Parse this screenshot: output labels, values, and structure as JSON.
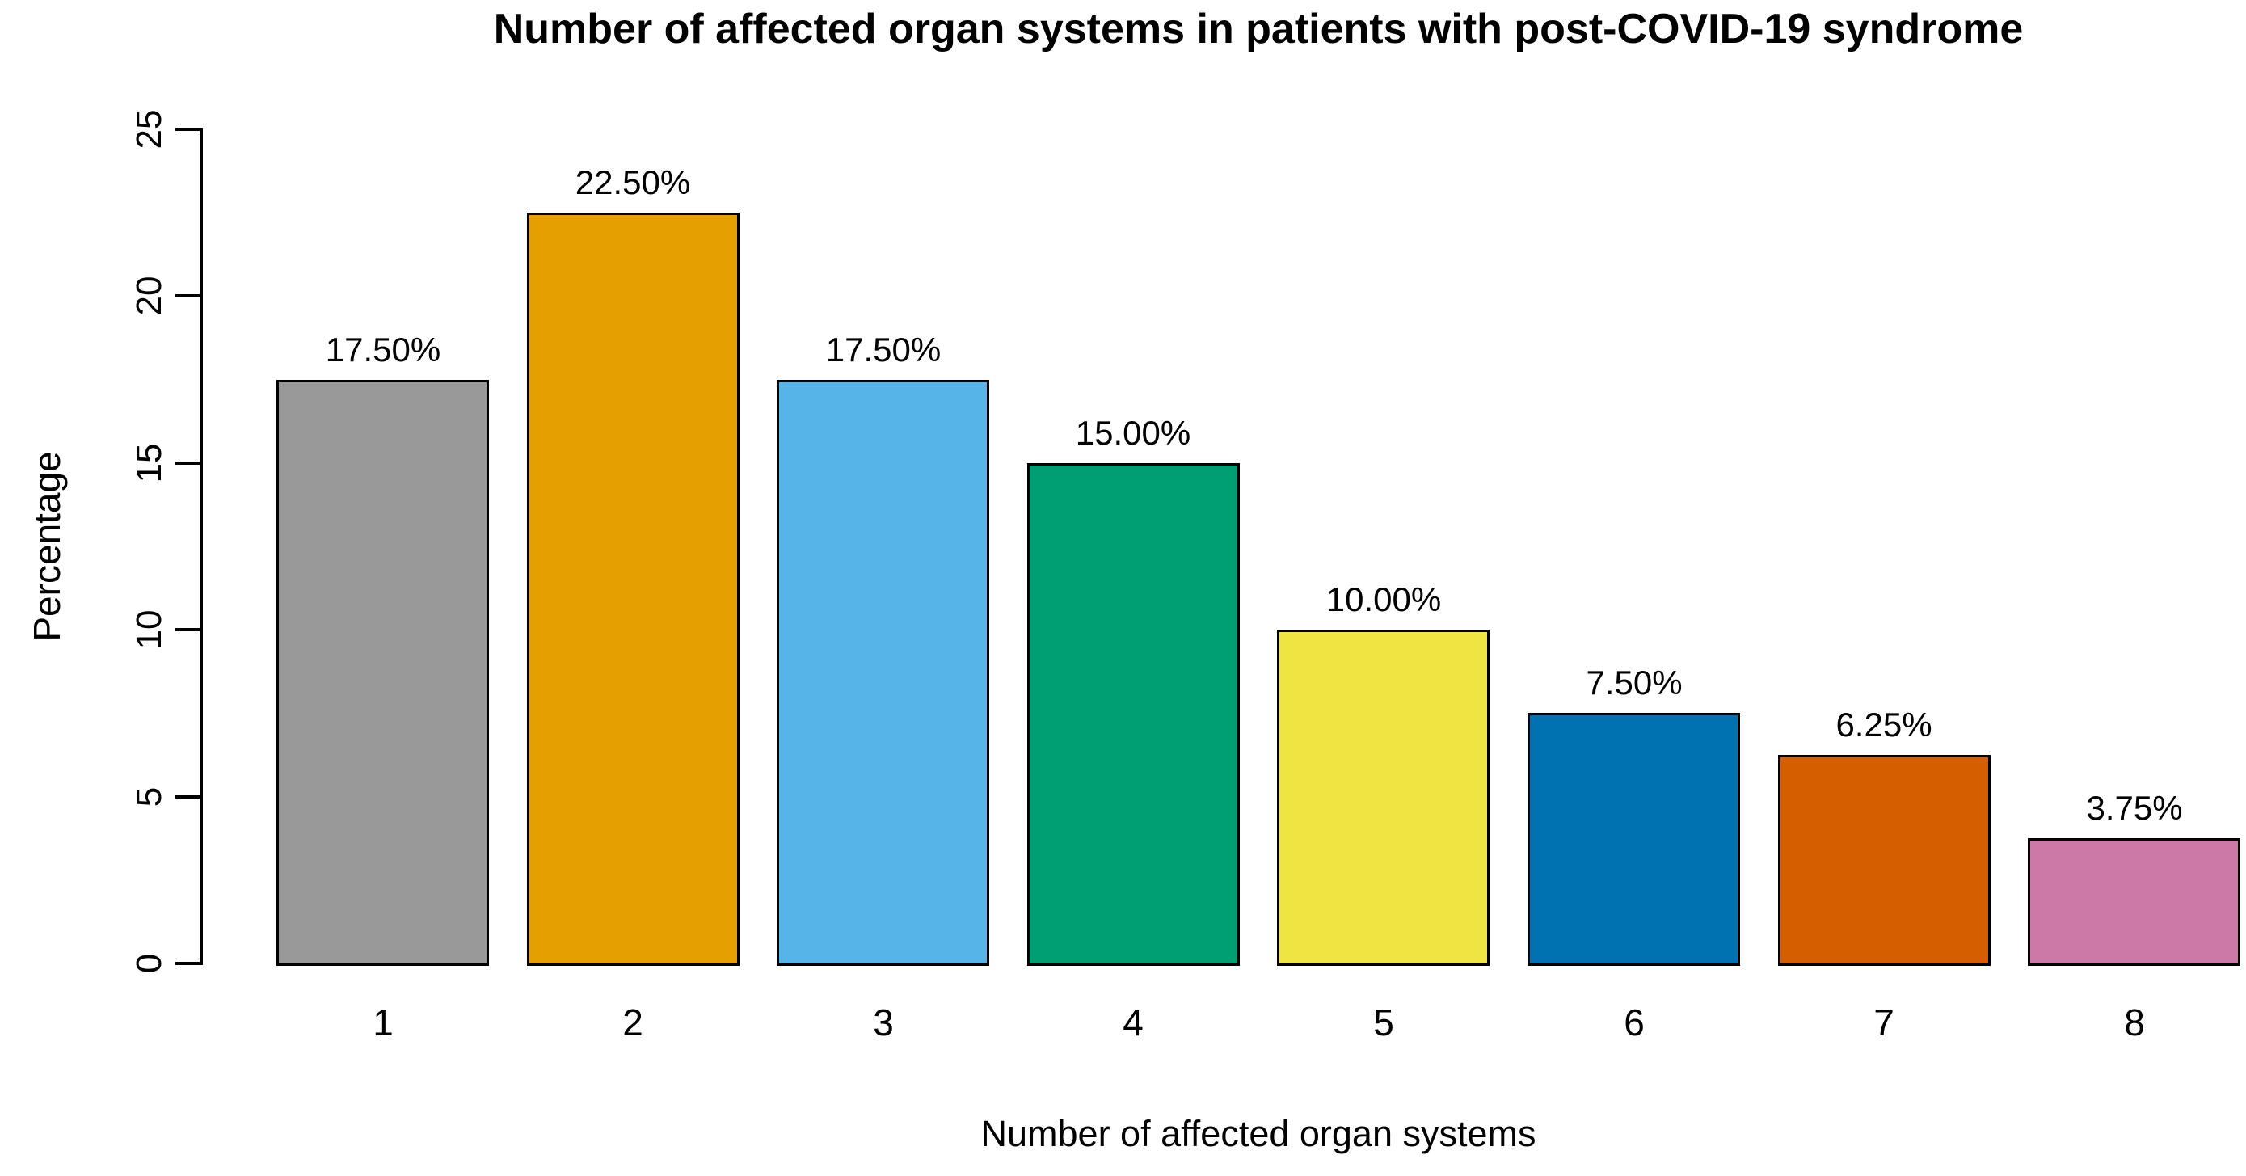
{
  "chart_data": {
    "type": "bar",
    "title": "Number of affected organ systems in patients with post-COVID-19 syndrome",
    "xlabel": "Number of affected organ systems",
    "ylabel": "Percentage",
    "categories": [
      "1",
      "2",
      "3",
      "4",
      "5",
      "6",
      "7",
      "8"
    ],
    "values": [
      17.5,
      22.5,
      17.5,
      15.0,
      10.0,
      7.5,
      6.25,
      3.75
    ],
    "bar_labels": [
      "17.50%",
      "22.50%",
      "17.50%",
      "15.00%",
      "10.00%",
      "7.50%",
      "6.25%",
      "3.75%"
    ],
    "bar_colors": [
      "#999999",
      "#E69F00",
      "#56B4E9",
      "#009E73",
      "#F0E442",
      "#0072B2",
      "#D55E00",
      "#CC79A7"
    ],
    "yticks": [
      0,
      5,
      10,
      15,
      20,
      25
    ],
    "ylim": [
      0,
      25
    ],
    "grid": false,
    "legend": "none",
    "bar_border_color": "#000000",
    "axis_color": "#000000",
    "background_color": "#FFFFFF"
  }
}
